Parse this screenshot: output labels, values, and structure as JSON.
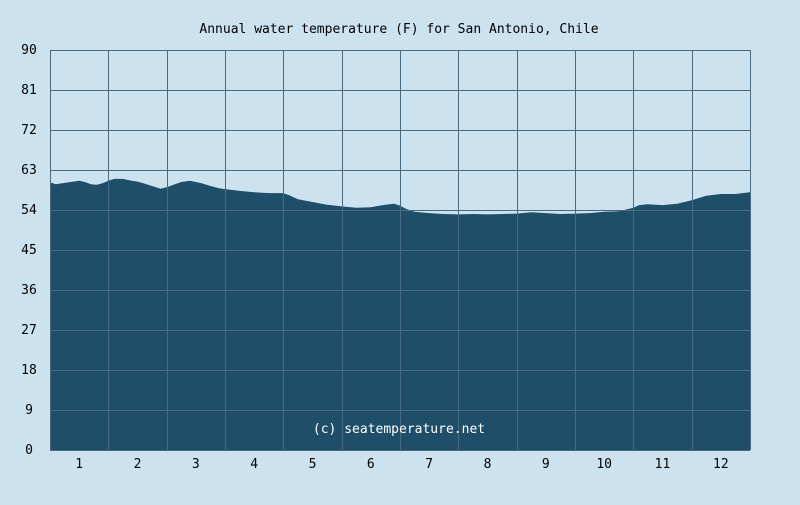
{
  "chart_data": {
    "type": "area",
    "title": "Annual water temperature (F) for San Antonio, Chile",
    "xlabel": "",
    "ylabel": "",
    "x_ticks": [
      "1",
      "2",
      "3",
      "4",
      "5",
      "6",
      "7",
      "8",
      "9",
      "10",
      "11",
      "12"
    ],
    "y_ticks": [
      "0",
      "9",
      "18",
      "27",
      "36",
      "45",
      "54",
      "63",
      "72",
      "81",
      "90"
    ],
    "ylim": [
      0,
      90
    ],
    "xlim": [
      0.5,
      12.5
    ],
    "grid": true,
    "series": [
      {
        "x": [
          0.5,
          0.6,
          0.75,
          0.9,
          1.0,
          1.1,
          1.2,
          1.3,
          1.4,
          1.5,
          1.6,
          1.75,
          1.9,
          2.0,
          2.1,
          2.25,
          2.4,
          2.5,
          2.6,
          2.75,
          2.9,
          3.0,
          3.1,
          3.25,
          3.4,
          3.5,
          3.75,
          4.0,
          4.25,
          4.5,
          4.6,
          4.75,
          5.0,
          5.25,
          5.5,
          5.75,
          6.0,
          6.25,
          6.4,
          6.5,
          6.6,
          6.75,
          7.0,
          7.25,
          7.5,
          7.75,
          8.0,
          8.25,
          8.5,
          8.75,
          9.0,
          9.25,
          9.5,
          9.75,
          10.0,
          10.25,
          10.5,
          10.6,
          10.75,
          11.0,
          11.25,
          11.5,
          11.75,
          12.0,
          12.25,
          12.5
        ],
        "values": [
          60.2,
          59.8,
          60.1,
          60.4,
          60.6,
          60.3,
          59.8,
          59.7,
          60.0,
          60.6,
          61.0,
          61.0,
          60.6,
          60.4,
          60.0,
          59.4,
          58.8,
          59.1,
          59.6,
          60.3,
          60.6,
          60.3,
          60.0,
          59.4,
          58.9,
          58.7,
          58.3,
          58.0,
          57.8,
          57.8,
          57.3,
          56.4,
          55.8,
          55.2,
          54.8,
          54.5,
          54.6,
          55.2,
          55.4,
          55.0,
          54.3,
          53.6,
          53.3,
          53.1,
          53.0,
          53.1,
          53.0,
          53.1,
          53.2,
          53.5,
          53.3,
          53.1,
          53.2,
          53.3,
          53.6,
          53.7,
          54.5,
          55.1,
          55.3,
          55.1,
          55.4,
          56.2,
          57.2,
          57.6,
          57.6,
          58.0
        ]
      }
    ],
    "credit": "(c) seatemperature.net",
    "colors": {
      "background": "#cce3ef",
      "fill": "#1f4e68",
      "grid": "#4a6a80"
    }
  }
}
